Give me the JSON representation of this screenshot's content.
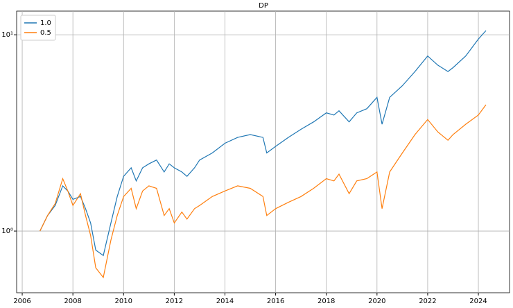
{
  "chart_data": {
    "type": "line",
    "title": "DP",
    "log_y": true,
    "grid": true,
    "legend": "upper left",
    "x": [
      2006.7,
      2007.0,
      2007.3,
      2007.6,
      2007.8,
      2008.0,
      2008.3,
      2008.5,
      2008.7,
      2008.9,
      2009.2,
      2009.5,
      2009.75,
      2010.0,
      2010.3,
      2010.5,
      2010.75,
      2011.0,
      2011.3,
      2011.6,
      2011.8,
      2012.0,
      2012.3,
      2012.5,
      2012.8,
      2013.0,
      2013.5,
      2014.0,
      2014.5,
      2015.0,
      2015.5,
      2015.65,
      2016.0,
      2016.5,
      2017.0,
      2017.5,
      2018.0,
      2018.3,
      2018.5,
      2018.9,
      2019.2,
      2019.6,
      2020.0,
      2020.2,
      2020.5,
      2021.0,
      2021.5,
      2022.0,
      2022.4,
      2022.8,
      2023.0,
      2023.5,
      2024.0,
      2024.3
    ],
    "series": [
      {
        "name": "1.0",
        "color": "#1f77b4",
        "values": [
          1.0,
          1.2,
          1.35,
          1.7,
          1.6,
          1.45,
          1.5,
          1.3,
          1.1,
          0.8,
          0.75,
          1.1,
          1.5,
          1.9,
          2.1,
          1.8,
          2.1,
          2.2,
          2.3,
          2.0,
          2.2,
          2.1,
          2.0,
          1.9,
          2.1,
          2.3,
          2.5,
          2.8,
          3.0,
          3.1,
          3.0,
          2.5,
          2.7,
          3.0,
          3.3,
          3.6,
          4.0,
          3.9,
          4.1,
          3.6,
          4.0,
          4.2,
          4.8,
          3.5,
          4.8,
          5.5,
          6.5,
          7.8,
          7.0,
          6.5,
          6.8,
          7.8,
          9.5,
          10.5
        ]
      },
      {
        "name": "0.5",
        "color": "#ff7f0e",
        "values": [
          1.0,
          1.2,
          1.38,
          1.85,
          1.6,
          1.35,
          1.55,
          1.2,
          0.95,
          0.65,
          0.58,
          0.9,
          1.2,
          1.5,
          1.65,
          1.3,
          1.6,
          1.7,
          1.65,
          1.2,
          1.3,
          1.1,
          1.25,
          1.15,
          1.3,
          1.35,
          1.5,
          1.6,
          1.7,
          1.65,
          1.5,
          1.2,
          1.3,
          1.4,
          1.5,
          1.65,
          1.85,
          1.8,
          1.95,
          1.55,
          1.8,
          1.85,
          2.0,
          1.3,
          2.0,
          2.5,
          3.1,
          3.7,
          3.2,
          2.9,
          3.1,
          3.5,
          3.9,
          4.4
        ]
      }
    ],
    "xlim": [
      2005.78,
      2025.23
    ],
    "xticks": [
      2006,
      2008,
      2010,
      2012,
      2014,
      2016,
      2018,
      2020,
      2022,
      2024
    ],
    "ylim": [
      0.485,
      13.2
    ],
    "yticks": [
      {
        "value": 1,
        "label": "10⁰"
      },
      {
        "value": 10,
        "label": "10¹"
      }
    ]
  }
}
